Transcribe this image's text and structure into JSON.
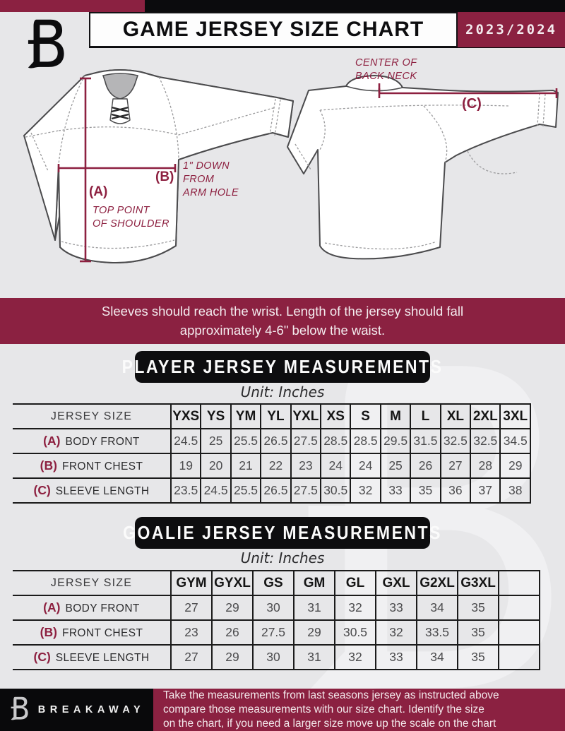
{
  "colors": {
    "maroon": "#8b2141",
    "black": "#0b0b0d",
    "page_bg": "#e7e7e9",
    "measure_line": "#8d2040"
  },
  "header": {
    "title": "GAME JERSEY SIZE CHART",
    "season": "2023/2024",
    "logo_name": "breakaway-b-logo"
  },
  "diagram": {
    "front": {
      "a_key": "(A)",
      "a_note": "TOP POINT\nOF SHOULDER",
      "b_key": "(B)",
      "b_note": "1\" DOWN\nFROM\nARM HOLE"
    },
    "back": {
      "c_key": "(C)",
      "neck_note": "CENTER OF\nBACK NECK"
    }
  },
  "instruction_banner": "Sleeves should reach the wrist. Length of the jersey should fall\napproximately 4-6\" below the waist.",
  "player_table": {
    "title": "PLAYER JERSEY MEASUREMENTS",
    "unit": "Unit: Inches",
    "header_label": "JERSEY SIZE",
    "sizes": [
      "YXS",
      "YS",
      "YM",
      "YL",
      "YXL",
      "XS",
      "S",
      "M",
      "L",
      "XL",
      "2XL",
      "3XL"
    ],
    "extra_empty_cols": 0,
    "rows": [
      {
        "key": "(A)",
        "label": "BODY FRONT",
        "values": [
          "24.5",
          "25",
          "25.5",
          "26.5",
          "27.5",
          "28.5",
          "28.5",
          "29.5",
          "31.5",
          "32.5",
          "32.5",
          "34.5"
        ]
      },
      {
        "key": "(B)",
        "label": "FRONT CHEST",
        "values": [
          "19",
          "20",
          "21",
          "22",
          "23",
          "24",
          "24",
          "25",
          "26",
          "27",
          "28",
          "29"
        ]
      },
      {
        "key": "(C)",
        "label": "SLEEVE LENGTH",
        "values": [
          "23.5",
          "24.5",
          "25.5",
          "26.5",
          "27.5",
          "30.5",
          "32",
          "33",
          "35",
          "36",
          "37",
          "38"
        ]
      }
    ]
  },
  "goalie_table": {
    "title": "GOALIE JERSEY MEASUREMENTS",
    "unit": "Unit: Inches",
    "header_label": "JERSEY SIZE",
    "sizes": [
      "GYM",
      "GYXL",
      "GS",
      "GM",
      "GL",
      "GXL",
      "G2XL",
      "G3XL"
    ],
    "extra_empty_cols": 1,
    "rows": [
      {
        "key": "(A)",
        "label": "BODY FRONT",
        "values": [
          "27",
          "29",
          "30",
          "31",
          "32",
          "33",
          "34",
          "35"
        ]
      },
      {
        "key": "(B)",
        "label": "FRONT CHEST",
        "values": [
          "23",
          "26",
          "27.5",
          "29",
          "30.5",
          "32",
          "33.5",
          "35"
        ]
      },
      {
        "key": "(C)",
        "label": "SLEEVE LENGTH",
        "values": [
          "27",
          "29",
          "30",
          "31",
          "32",
          "33",
          "34",
          "35"
        ]
      }
    ]
  },
  "footer": {
    "brand": "BREAKAWAY",
    "note": "Take the measurements from last seasons jersey as instructed above\ncompare those measurements  with our size chart. Identify the size\non the chart, if you need a larger size move up the scale on the chart"
  }
}
